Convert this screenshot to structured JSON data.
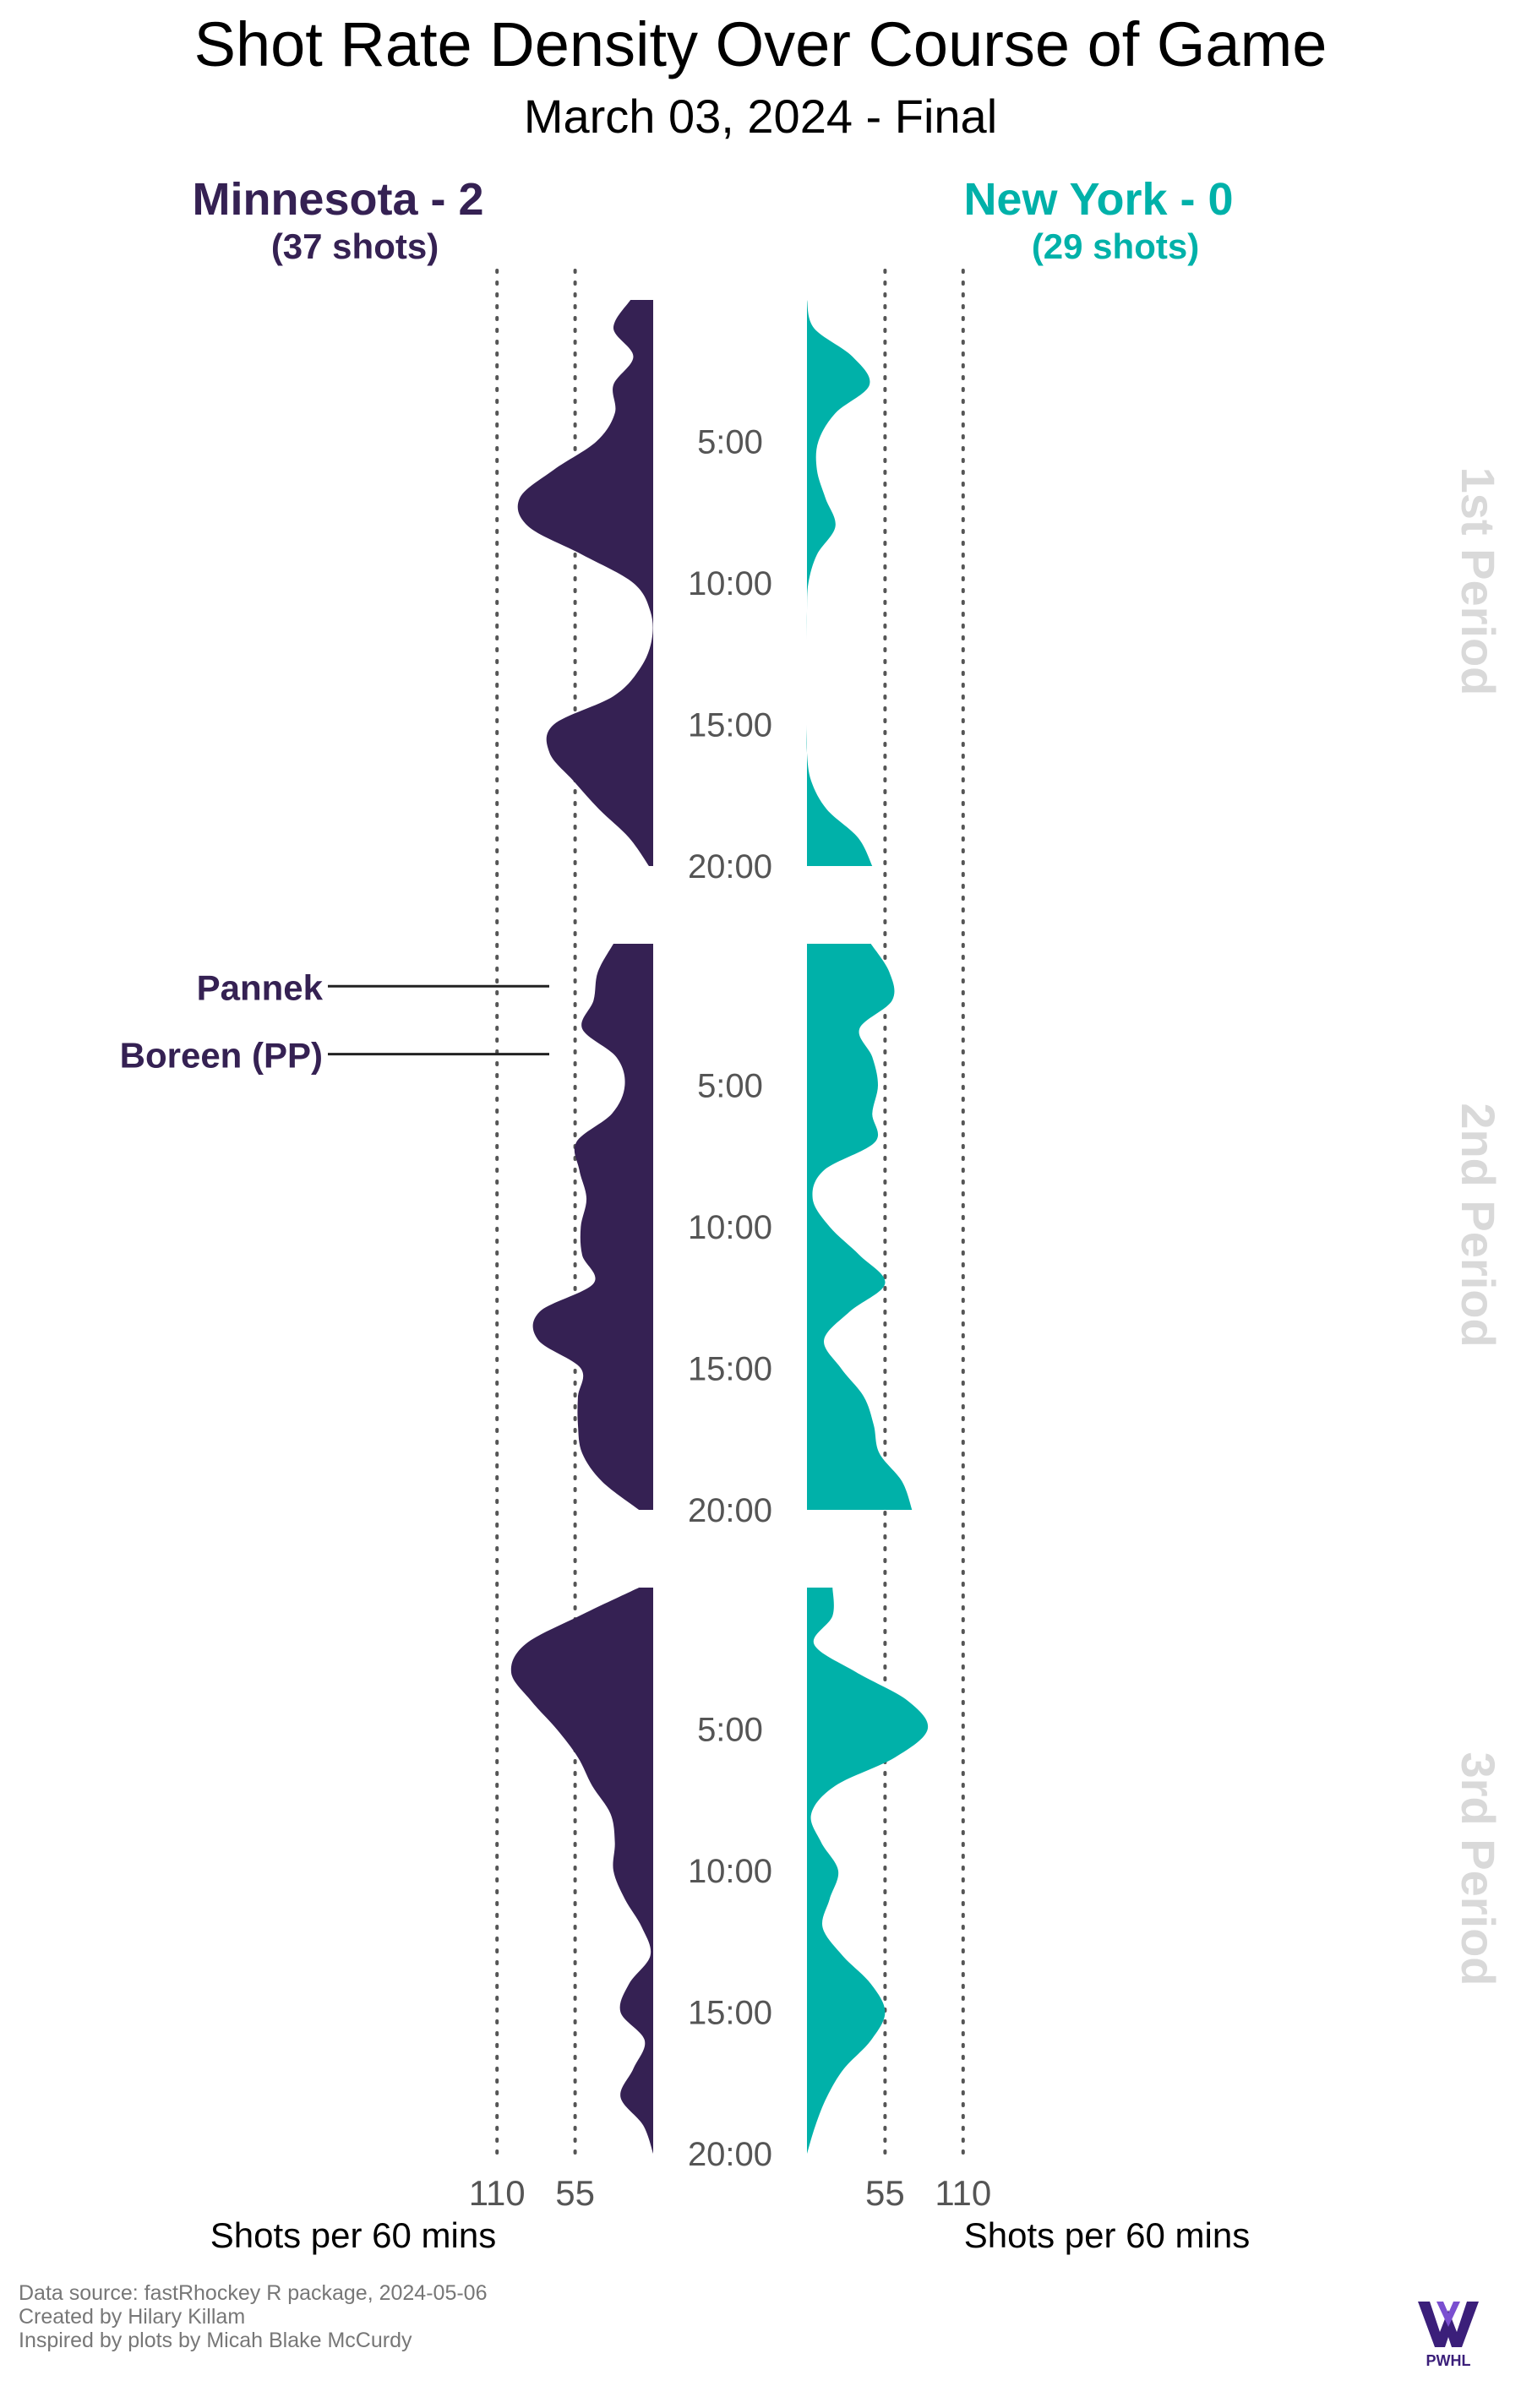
{
  "title": "Shot Rate Density Over Course of Game",
  "subtitle": "March 03, 2024 - Final",
  "teams": {
    "left": {
      "name": "Minnesota - 2",
      "shots": "(37 shots)",
      "color": "#352153"
    },
    "right": {
      "name": "New York - 0",
      "shots": "(29 shots)",
      "color": "#00b1a9"
    }
  },
  "footer": {
    "line1": "Data source: fastRhockey R package, 2024-05-06",
    "line2": "Created by Hilary Killam",
    "line3": "Inspired by plots by Micah Blake McCurdy"
  },
  "logo_icon": "pwhl-logo-icon",
  "logo_text": "PWHL",
  "chart_data": {
    "type": "area",
    "x_unit": "minutes into period",
    "time_ticks": [
      "5:00",
      "10:00",
      "15:00",
      "20:00"
    ],
    "time_tick_values": [
      5,
      10,
      15,
      20
    ],
    "rate_ticks": [
      55,
      110
    ],
    "rate_tick_labels": [
      "110",
      "55",
      "55",
      "110"
    ],
    "rate_label": "Shots per 60 mins",
    "rate_max_shown": 110,
    "grid": "dotted vertical lines at 55 and 110",
    "period_labels": [
      "1st Period",
      "2nd Period",
      "3rd Period"
    ],
    "annotations": [
      {
        "label": "Pannek",
        "team": "Minnesota",
        "period": 2,
        "time": 1.5
      },
      {
        "label": "Boreen (PP)",
        "team": "Minnesota",
        "period": 2,
        "time": 3.9
      }
    ],
    "series": [
      {
        "name": "Minnesota - 2",
        "color": "#352153",
        "periods": [
          {
            "t": [
              0,
              1,
              2,
              3,
              4,
              5,
              6,
              7,
              8,
              9,
              10,
              11,
              12,
              13,
              14,
              15,
              16,
              17,
              18,
              19,
              20
            ],
            "rate": [
              16,
              28,
              14,
              28,
              27,
              40,
              70,
              94,
              88,
              50,
              14,
              2,
              1,
              9,
              28,
              70,
              73,
              56,
              38,
              17,
              3
            ]
          },
          {
            "t": [
              0,
              1,
              2,
              3,
              4,
              5,
              6,
              7,
              8,
              9,
              10,
              11,
              12,
              13,
              14,
              15,
              16,
              17,
              18,
              19,
              20
            ],
            "rate": [
              28,
              39,
              42,
              50,
              26,
              20,
              29,
              54,
              52,
              47,
              51,
              50,
              42,
              80,
              81,
              51,
              53,
              53,
              50,
              36,
              10
            ]
          },
          {
            "t": [
              0,
              1,
              2,
              3,
              4,
              5,
              6,
              7,
              8,
              9,
              10,
              11,
              12,
              13,
              14,
              15,
              16,
              17,
              18,
              19,
              20
            ],
            "rate": [
              10,
              52,
              90,
              100,
              86,
              68,
              53,
              43,
              30,
              27,
              28,
              20,
              8,
              2,
              17,
              23,
              6,
              14,
              23,
              7,
              0
            ]
          }
        ]
      },
      {
        "name": "New York - 0",
        "color": "#00b1a9",
        "periods": [
          {
            "t": [
              0,
              1,
              2,
              3,
              4,
              5,
              6,
              7,
              8,
              9,
              10,
              11,
              12,
              13,
              14,
              15,
              16,
              17,
              18,
              19,
              20
            ],
            "rate": [
              0,
              5,
              32,
              44,
              20,
              8,
              7,
              13,
              20,
              7,
              1,
              0,
              0,
              0,
              0,
              0,
              0,
              3,
              14,
              36,
              46
            ]
          },
          {
            "t": [
              0,
              1,
              2,
              3,
              4,
              5,
              6,
              7,
              8,
              9,
              10,
              11,
              12,
              13,
              14,
              15,
              16,
              17,
              18,
              19,
              20
            ],
            "rate": [
              45,
              58,
              60,
              37,
              46,
              50,
              46,
              48,
              12,
              4,
              16,
              37,
              55,
              30,
              12,
              24,
              40,
              47,
              51,
              67,
              74
            ]
          },
          {
            "t": [
              0,
              1,
              2,
              3,
              4,
              5,
              6,
              7,
              8,
              9,
              10,
              11,
              12,
              13,
              14,
              15,
              16,
              17,
              18,
              19,
              20
            ],
            "rate": [
              18,
              18,
              5,
              35,
              71,
              85,
              62,
              20,
              3,
              10,
              22,
              16,
              11,
              25,
              45,
              55,
              45,
              26,
              14,
              6,
              0
            ]
          }
        ]
      }
    ]
  }
}
